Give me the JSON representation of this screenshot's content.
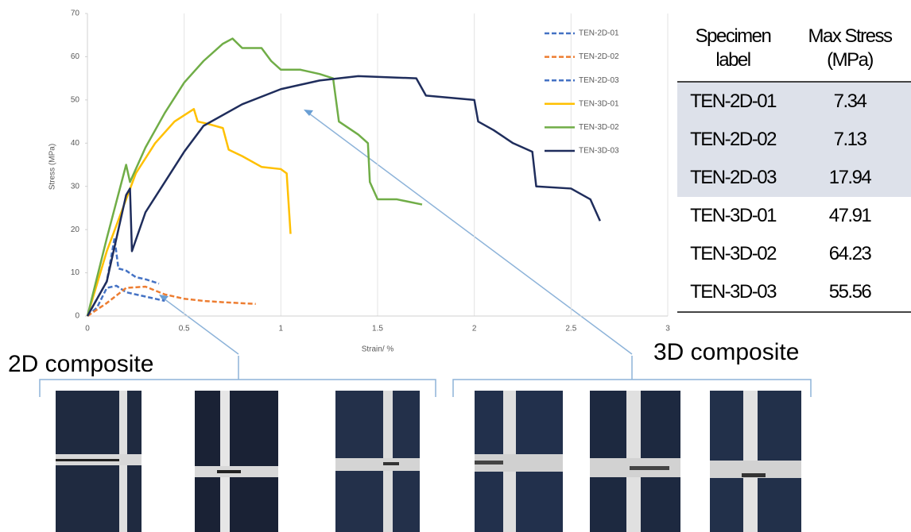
{
  "chart_data": {
    "type": "line",
    "x_label": "Strain/ %",
    "y_label": "Stress (MPa)",
    "xlim": [
      0,
      3
    ],
    "xticks": [
      0,
      0.5,
      1,
      1.5,
      2,
      2.5,
      3
    ],
    "ylim": [
      0,
      70
    ],
    "yticks": [
      0,
      10,
      20,
      30,
      40,
      50,
      60,
      70
    ],
    "grid": "x",
    "legend": "top-right",
    "series": [
      {
        "name": "TEN-2D-01",
        "color": "#4472c4",
        "dashed": true,
        "x": [
          0,
          0.05,
          0.1,
          0.15,
          0.2,
          0.3,
          0.4
        ],
        "values": [
          0,
          2,
          6.5,
          7,
          5.5,
          4.5,
          3.5
        ]
      },
      {
        "name": "TEN-2D-02",
        "color": "#ed7d31",
        "dashed": true,
        "x": [
          0,
          0.1,
          0.2,
          0.3,
          0.4,
          0.5,
          0.6,
          0.7,
          0.87
        ],
        "values": [
          0,
          3,
          6.5,
          6.8,
          5,
          4,
          3.5,
          3.2,
          2.8
        ]
      },
      {
        "name": "TEN-2D-03",
        "color": "#4472c4",
        "dashed": true,
        "x": [
          0,
          0.1,
          0.14,
          0.16,
          0.2,
          0.25,
          0.3,
          0.37
        ],
        "values": [
          0,
          8,
          18,
          11,
          10.5,
          9,
          8.5,
          7.5
        ]
      },
      {
        "name": "TEN-3D-01",
        "color": "#ffc000",
        "dashed": false,
        "x": [
          0,
          0.1,
          0.2,
          0.25,
          0.35,
          0.45,
          0.55,
          0.57,
          0.62,
          0.7,
          0.73,
          0.8,
          0.9,
          1.0,
          1.03,
          1.05
        ],
        "values": [
          0,
          15,
          27,
          33,
          40,
          45,
          47.9,
          45,
          44.5,
          43.5,
          38.5,
          37,
          34.5,
          34,
          33,
          19
        ]
      },
      {
        "name": "TEN-3D-02",
        "color": "#70ad47",
        "dashed": false,
        "x": [
          0,
          0.1,
          0.2,
          0.22,
          0.3,
          0.4,
          0.5,
          0.6,
          0.7,
          0.75,
          0.8,
          0.9,
          0.95,
          1.0,
          1.1,
          1.2,
          1.27,
          1.3,
          1.4,
          1.45,
          1.46,
          1.5,
          1.6,
          1.73
        ],
        "values": [
          0,
          18,
          35,
          31,
          39,
          47,
          54,
          59,
          63,
          64.2,
          62,
          62,
          59,
          57,
          57,
          56,
          55,
          45,
          42,
          40,
          31,
          27,
          27,
          25.8
        ]
      },
      {
        "name": "TEN-3D-03",
        "color": "#1f2d5c",
        "dashed": false,
        "x": [
          0,
          0.1,
          0.2,
          0.22,
          0.23,
          0.3,
          0.4,
          0.5,
          0.6,
          0.8,
          1.0,
          1.2,
          1.4,
          1.7,
          1.75,
          2.0,
          2.02,
          2.1,
          2.2,
          2.3,
          2.32,
          2.5,
          2.6,
          2.65
        ],
        "values": [
          0,
          8,
          28,
          29.5,
          15,
          24,
          31,
          38,
          44,
          49,
          52.5,
          54.5,
          55.5,
          55,
          51,
          50,
          45,
          43,
          40,
          38,
          30,
          29.5,
          27,
          22
        ]
      }
    ]
  },
  "table": {
    "header": [
      "Specimen label",
      "Max Stress (MPa)"
    ],
    "rows": [
      [
        "TEN-2D-01",
        7.34
      ],
      [
        "TEN-2D-02",
        7.13
      ],
      [
        "TEN-2D-03",
        17.94
      ],
      [
        "TEN-3D-01",
        47.91
      ],
      [
        "TEN-3D-02",
        64.23
      ],
      [
        "TEN-3D-03",
        55.56
      ]
    ]
  },
  "annotations": {
    "left": "2D composite",
    "right": "3D composite"
  }
}
